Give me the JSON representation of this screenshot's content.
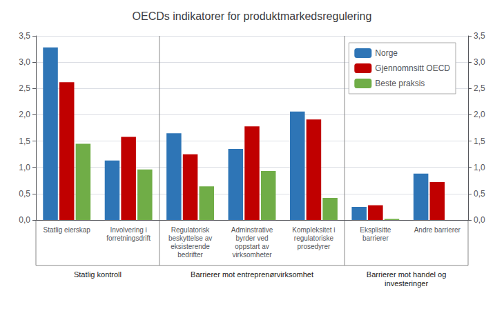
{
  "chart_data": {
    "type": "bar",
    "title": "OECDs indikatorer for produktmarkedsregulering",
    "categories": [
      "Statlig eierskap",
      "Involvering i\nforretningsdrift",
      "Regulatorisk\nbeskyttelse av\neksisterende\nbedrifter",
      "Adminstrative\nbyrder ved\noppstart av\nvirksomheter",
      "Kompleksitet i\nregulatoriske\nprosedyrer",
      "Eksplisitte\nbarrierer",
      "Andre barrierer"
    ],
    "series": [
      {
        "name": "Norge",
        "color": "#2E75B6",
        "values": [
          3.28,
          1.13,
          1.65,
          1.35,
          2.06,
          0.25,
          0.88
        ]
      },
      {
        "name": "Gjennomnsitt OECD",
        "color": "#C00000",
        "values": [
          2.62,
          1.58,
          1.25,
          1.78,
          1.91,
          0.28,
          0.72
        ]
      },
      {
        "name": "Beste praksis",
        "color": "#70AD47",
        "values": [
          1.45,
          0.96,
          0.64,
          0.93,
          0.42,
          0.02,
          null
        ]
      }
    ],
    "ylim": [
      0,
      3.5
    ],
    "yticks": [
      {
        "value": 0,
        "label": "0,0"
      },
      {
        "value": 0.5,
        "label": "0,5"
      },
      {
        "value": 1,
        "label": "1,0"
      },
      {
        "value": 1.5,
        "label": "1,5"
      },
      {
        "value": 2,
        "label": "2,0"
      },
      {
        "value": 2.5,
        "label": "2,5"
      },
      {
        "value": 3,
        "label": "3,0"
      },
      {
        "value": 3.5,
        "label": "3,5"
      }
    ],
    "y2lim": [
      0,
      3.5
    ],
    "y2ticks": [
      {
        "value": 0,
        "label": "0,0"
      },
      {
        "value": 0.5,
        "label": "0,5"
      },
      {
        "value": 1,
        "label": "1,0"
      },
      {
        "value": 1.5,
        "label": "1,5"
      },
      {
        "value": 2,
        "label": "2,0"
      },
      {
        "value": 2.5,
        "label": "2,5"
      },
      {
        "value": 3,
        "label": "3,0"
      },
      {
        "value": 3.5,
        "label": "3,5"
      }
    ],
    "annotations": [
      {
        "text": "Statlig kontroll",
        "span": [
          0,
          1
        ]
      },
      {
        "text": "Barrierer mot entreprenørvirksomhet",
        "span": [
          2,
          4
        ]
      },
      {
        "text": "Barrierer mot handel og\ninvesteringer",
        "span": [
          5,
          6
        ]
      }
    ],
    "grid": true,
    "legend": "upper right"
  }
}
